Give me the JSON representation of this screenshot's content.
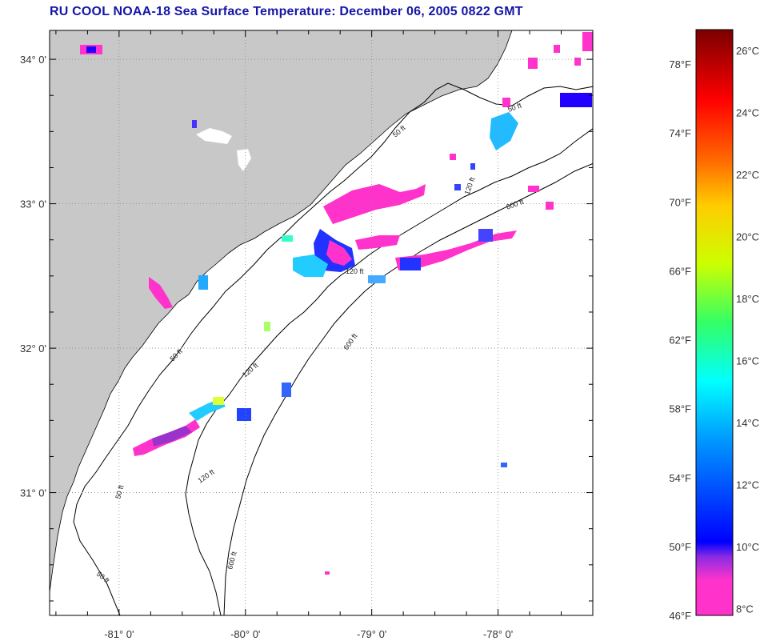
{
  "title": "RU COOL  NOAA-18  Sea Surface Temperature:  December 06, 2005 0822 GMT",
  "map": {
    "lon_range": [
      -81.55,
      -77.25
    ],
    "lat_range": [
      30.15,
      34.2
    ],
    "lat_ticks": [
      {
        "value": 34,
        "label": "34° 0'"
      },
      {
        "value": 33,
        "label": "33° 0'"
      },
      {
        "value": 32,
        "label": "32° 0'"
      },
      {
        "value": 31,
        "label": "31° 0'"
      }
    ],
    "lon_ticks": [
      {
        "value": -81,
        "label": "-81° 0'"
      },
      {
        "value": -80,
        "label": "-80° 0'"
      },
      {
        "value": -79,
        "label": "-79° 0'"
      },
      {
        "value": -78,
        "label": "-78° 0'"
      }
    ],
    "contour_labels": [
      "50 ft",
      "120 ft",
      "600 ft"
    ],
    "colors": {
      "land": "#c8c8c8",
      "ocean": "#ffffff",
      "grid": "#777777",
      "contour": "#000000"
    }
  },
  "colorbar": {
    "range_f": [
      46,
      80
    ],
    "fahrenheit_labels": [
      {
        "value": 46,
        "label": "46°F"
      },
      {
        "value": 50,
        "label": "50°F"
      },
      {
        "value": 54,
        "label": "54°F"
      },
      {
        "value": 58,
        "label": "58°F"
      },
      {
        "value": 62,
        "label": "62°F"
      },
      {
        "value": 66,
        "label": "66°F"
      },
      {
        "value": 70,
        "label": "70°F"
      },
      {
        "value": 74,
        "label": "74°F"
      },
      {
        "value": 78,
        "label": "78°F"
      }
    ],
    "celsius_labels": [
      {
        "value": 8,
        "label": "8°C"
      },
      {
        "value": 10,
        "label": "10°C"
      },
      {
        "value": 12,
        "label": "12°C"
      },
      {
        "value": 14,
        "label": "14°C"
      },
      {
        "value": 16,
        "label": "16°C"
      },
      {
        "value": 18,
        "label": "18°C"
      },
      {
        "value": 20,
        "label": "20°C"
      },
      {
        "value": 22,
        "label": "22°C"
      },
      {
        "value": 24,
        "label": "24°C"
      },
      {
        "value": 26,
        "label": "26°C"
      }
    ],
    "gradient_stops": [
      "#ff33cc",
      "#9933cc",
      "#0000ff",
      "#00aaff",
      "#00ffff",
      "#66ff66",
      "#ffff00",
      "#ffaa00",
      "#ff0000",
      "#880000"
    ]
  }
}
